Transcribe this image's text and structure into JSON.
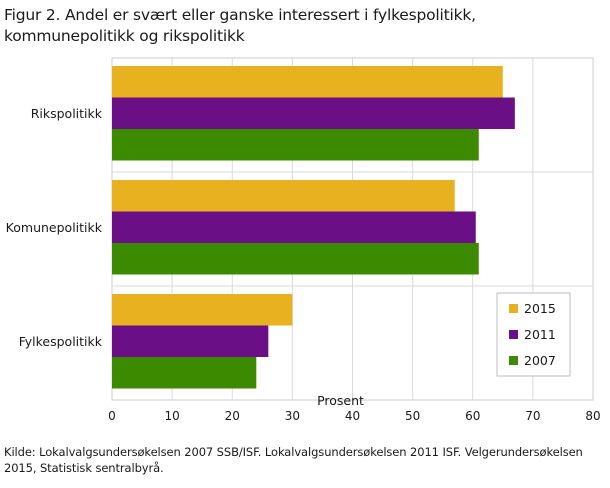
{
  "chart_data": {
    "type": "bar",
    "orientation": "horizontal",
    "title": "Figur 2. Andel er svært eller ganske interessert i fylkespolitikk, kommunepolitikk og rikspolitikk",
    "categories": [
      "Rikspolitikk",
      "Komunepolitikk",
      "Fylkespolitikk"
    ],
    "series": [
      {
        "name": "2015",
        "color": "#e8b120",
        "values": [
          65,
          57,
          30
        ]
      },
      {
        "name": "2011",
        "color": "#6a0f86",
        "values": [
          67,
          60.5,
          26
        ]
      },
      {
        "name": "2007",
        "color": "#3b8a00",
        "values": [
          61,
          61,
          24
        ]
      }
    ],
    "xlabel": "Prosent",
    "ylabel": "",
    "xlim": [
      0,
      80
    ],
    "xticks": [
      "0",
      "10",
      "20",
      "30",
      "40",
      "50",
      "60",
      "70",
      "80"
    ],
    "grid": true,
    "legend_position": "bottom-right"
  },
  "source": "Kilde: Lokalvalgsundersøkelsen 2007 SSB/ISF. Lokalvalgsundersøkelsen 2011 ISF. Velgerundersøkelsen 2015, Statistisk sentralbyrå."
}
